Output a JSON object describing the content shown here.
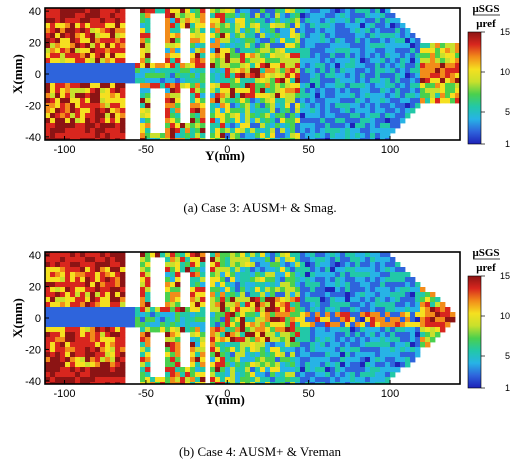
{
  "panels": [
    {
      "caption": "(a) Case 3: AUSM+ & Smag.",
      "variant": "smagorinsky"
    },
    {
      "caption": "(b) Case 4: AUSM+ & Vreman",
      "variant": "vreman"
    }
  ],
  "axes": {
    "xlabel": "Y(mm)",
    "ylabel": "X(mm)",
    "x_ticks": [
      "-100",
      "-50",
      "0",
      "50",
      "100"
    ],
    "x_tick_values": [
      -100,
      -50,
      0,
      50,
      100
    ],
    "y_ticks": [
      "40",
      "20",
      "0",
      "-20",
      "-40"
    ],
    "y_tick_values": [
      40,
      20,
      0,
      -20,
      -40
    ],
    "xlim": [
      -112,
      143
    ],
    "ylim": [
      -42,
      42
    ]
  },
  "colorbar": {
    "numerator": "μSGS",
    "denominator": "μref",
    "ticks": [
      "15",
      "10",
      "5",
      "1"
    ],
    "tick_values": [
      15,
      10,
      5,
      1
    ],
    "range": [
      1,
      15
    ],
    "colors": [
      "#1e22b8",
      "#2e64dc",
      "#27b3e6",
      "#22c8a8",
      "#4ad04e",
      "#c8e02c",
      "#f5e020",
      "#f28c1a",
      "#d8261e",
      "#8c1414"
    ]
  },
  "chart_data": [
    {
      "type": "heatmap",
      "title": "(a) Case 3: AUSM+ & Smag.",
      "xlabel": "Y(mm)",
      "ylabel": "X(mm)",
      "xlim": [
        -112,
        143
      ],
      "ylim": [
        -42,
        42
      ],
      "colorbar_range": [
        1,
        15
      ]
    },
    {
      "type": "heatmap",
      "title": "(b) Case 4: AUSM+ & Vreman",
      "xlabel": "Y(mm)",
      "ylabel": "X(mm)",
      "xlim": [
        -112,
        143
      ],
      "ylim": [
        -42,
        42
      ],
      "colorbar_range": [
        1,
        15
      ]
    }
  ]
}
